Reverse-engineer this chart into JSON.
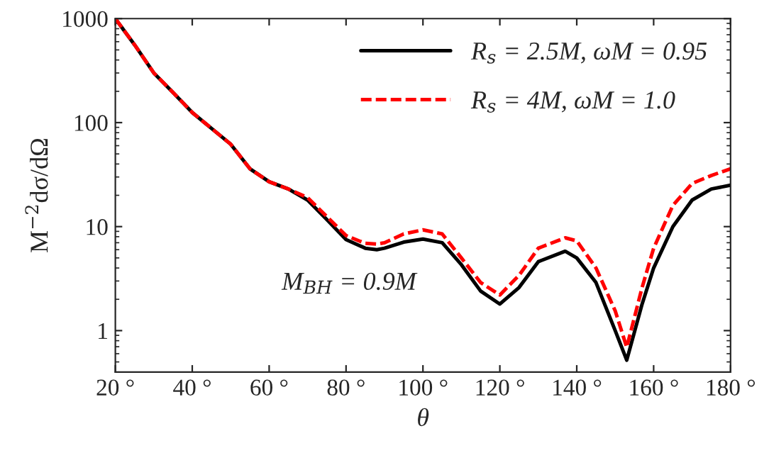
{
  "chart_data": {
    "type": "line",
    "xlabel": "θ",
    "ylabel": "M$^{−2}$dσ/dΩ",
    "log": true,
    "grid": false,
    "legend": "top right",
    "x": [
      20,
      25,
      30,
      35,
      40,
      45,
      50,
      55,
      60,
      65,
      70,
      75,
      80,
      85,
      88,
      90,
      95,
      100,
      105,
      110,
      115,
      120,
      125,
      130,
      137,
      140,
      145,
      150,
      153,
      157,
      160,
      165,
      170,
      175,
      180
    ],
    "series": [
      {
        "name": "R$_{s}$ = 2.5M, ωM = 0.95",
        "color": "#000000",
        "line_style": "solid",
        "values": [
          1000,
          560,
          300,
          195,
          125,
          88,
          62,
          36,
          27,
          23,
          18,
          11.7,
          7.5,
          6.2,
          6.0,
          6.2,
          7.1,
          7.6,
          7.0,
          4.3,
          2.4,
          1.8,
          2.6,
          4.6,
          5.8,
          5.0,
          2.9,
          1.0,
          0.52,
          1.8,
          4.0,
          10,
          18,
          23,
          25
        ]
      },
      {
        "name": "R$_{s}$ = 4M, ωM = 1.0",
        "color": "#ff0000",
        "line_style": "dashed",
        "values": [
          1000,
          560,
          300,
          195,
          125,
          88,
          62,
          36,
          27,
          23,
          19,
          12.5,
          8.2,
          6.9,
          6.8,
          7.0,
          8.5,
          9.3,
          8.5,
          5.0,
          2.9,
          2.2,
          3.4,
          6.2,
          7.8,
          7.3,
          4.0,
          1.55,
          0.69,
          2.6,
          6.2,
          16,
          26,
          31,
          36
        ]
      }
    ],
    "xlim": [
      20,
      180
    ],
    "xticks": [
      {
        "value": 20,
        "label": "20 °"
      },
      {
        "value": 40,
        "label": "40 °"
      },
      {
        "value": 60,
        "label": "60 °"
      },
      {
        "value": 80,
        "label": "80 °"
      },
      {
        "value": 100,
        "label": "100 °"
      },
      {
        "value": 120,
        "label": "120 °"
      },
      {
        "value": 140,
        "label": "140 °"
      },
      {
        "value": 160,
        "label": "160 °"
      },
      {
        "value": 180,
        "label": "180 °"
      }
    ],
    "ylim": [
      0.4,
      1000
    ],
    "yticks": [
      1,
      10,
      100,
      1000
    ],
    "annotations": [
      "M$_{BH}$ = 0.9M"
    ]
  }
}
